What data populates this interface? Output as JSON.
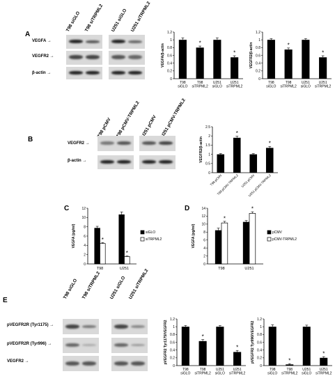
{
  "panels": {
    "A": {
      "letter": "A",
      "lanes": [
        "T98 siGLO",
        "T98 siTRPML2",
        "U251 siGLO",
        "U251 siTRPML2"
      ],
      "blots": [
        "VEGFA",
        "VEGFR2",
        "β-actin"
      ],
      "charts": [
        {
          "ylabel": "VEGFA/β-actin",
          "categories": [
            "T98 siGLO",
            "T98 siTRPML2",
            "U251 siGLO",
            "U251 siTRPML2"
          ],
          "values": [
            1.0,
            0.8,
            1.0,
            0.55
          ],
          "errors": [
            0.05,
            0.04,
            0.05,
            0.04
          ],
          "sig": [
            false,
            true,
            false,
            true
          ],
          "yticks": [
            "0",
            "0.2",
            "0.4",
            "0.6",
            "0.8",
            "1",
            "1.2"
          ],
          "ylim": [
            0,
            1.2
          ]
        },
        {
          "ylabel": "VEGFR2/β-actin",
          "categories": [
            "T98 siGLO",
            "T98 siTRPML2",
            "U251 siGLO",
            "U251 siTRPML2"
          ],
          "values": [
            1.0,
            0.75,
            1.0,
            0.55
          ],
          "errors": [
            0.03,
            0.04,
            0.03,
            0.04
          ],
          "sig": [
            false,
            true,
            false,
            true
          ],
          "yticks": [
            "0",
            "0.2",
            "0.4",
            "0.6",
            "0.8",
            "1",
            "1.2"
          ],
          "ylim": [
            0,
            1.2
          ]
        }
      ]
    },
    "B": {
      "letter": "B",
      "lanes": [
        "T98 pCMV",
        "T98 pCMV-TRPML2",
        "U251 pCMV",
        "U251 pCMV-TRPML2"
      ],
      "blots": [
        "VEGFR2",
        "β-actin"
      ],
      "charts": [
        {
          "ylabel": "VEGFR2/β-actin",
          "categories": [
            "T98 pCMV",
            "T98 pCMV-TRPML2",
            "U251 pCMV",
            "U251 pCMV-TRPML2"
          ],
          "values": [
            1.0,
            1.9,
            1.0,
            1.35
          ],
          "errors": [
            0.04,
            0.08,
            0.04,
            0.08
          ],
          "sig": [
            false,
            true,
            false,
            true
          ],
          "yticks": [
            "0",
            "0.5",
            "1",
            "1.5",
            "2",
            "2.5"
          ],
          "ylim": [
            0,
            2.5
          ],
          "rotated": true
        }
      ]
    },
    "C": {
      "letter": "C",
      "ylabel": "VEGFA (pg/ml)",
      "groups": [
        "T98",
        "U251"
      ],
      "series": [
        {
          "name": "siGLO",
          "values": [
            7.7,
            10.6
          ],
          "errors": [
            0.4,
            0.6
          ],
          "color": "#000000"
        },
        {
          "name": "siTRPML2",
          "values": [
            4.4,
            1.6
          ],
          "errors": [
            0.2,
            0.1
          ],
          "color": "#ffffff"
        }
      ],
      "sig": [
        false,
        true,
        false,
        true
      ],
      "yticks": [
        "0",
        "2",
        "4",
        "6",
        "8",
        "10",
        "12"
      ],
      "ylim": [
        0,
        12
      ]
    },
    "D": {
      "letter": "D",
      "ylabel": "VEGFA (pg/ml)",
      "groups": [
        "T98",
        "U251"
      ],
      "series": [
        {
          "name": "pCMV",
          "values": [
            8.4,
            10.5
          ],
          "errors": [
            0.6,
            0.4
          ],
          "color": "#000000"
        },
        {
          "name": "pCMV-TRPML2",
          "values": [
            10.3,
            12.7
          ],
          "errors": [
            0.4,
            0.4
          ],
          "color": "#ffffff"
        }
      ],
      "sig": [
        false,
        true,
        false,
        true
      ],
      "yticks": [
        "0",
        "2",
        "4",
        "6",
        "8",
        "10",
        "12",
        "14"
      ],
      "ylim": [
        0,
        14
      ]
    },
    "E": {
      "letter": "E",
      "lanes": [
        "T98 siGLO",
        "T98 siTRPML2",
        "U251 siGLO",
        "U251 siTRPML2"
      ],
      "blots": [
        "pVEGFR2R (Tyr1175)",
        "pVEGFR2R (Tyr996)",
        "VEGFR2"
      ],
      "charts": [
        {
          "ylabel": "pVEGFR2 Tyr1175/VEGFR2",
          "categories": [
            "T98 siGLO",
            "T98 siTRPML2",
            "U251 siGLO",
            "U251 siTRPML2"
          ],
          "values": [
            1.0,
            0.63,
            1.0,
            0.35
          ],
          "errors": [
            0.03,
            0.04,
            0.03,
            0.04
          ],
          "sig": [
            false,
            true,
            false,
            true
          ],
          "yticks": [
            "0",
            "0.2",
            "0.4",
            "0.6",
            "0.8",
            "1",
            "1.2"
          ],
          "ylim": [
            0,
            1.2
          ]
        },
        {
          "ylabel": "pVEGFR2 Tyr996/VEGFR2",
          "categories": [
            "T98 siGLO",
            "T98 siTRPML2",
            "U251 siGLO",
            "U251 siTRPML2"
          ],
          "values": [
            1.0,
            0.03,
            1.0,
            0.2
          ],
          "errors": [
            0.05,
            0.02,
            0.04,
            0.03
          ],
          "sig": [
            false,
            true,
            false,
            true
          ],
          "yticks": [
            "0",
            "0.2",
            "0.4",
            "0.6",
            "0.8",
            "1",
            "1.2"
          ],
          "ylim": [
            0,
            1.2
          ]
        }
      ]
    }
  },
  "chart_data": [
    {
      "type": "bar",
      "panel": "A",
      "ylabel": "VEGFA/β-actin",
      "categories": [
        "T98 siGLO",
        "T98 siTRPML2",
        "U251 siGLO",
        "U251 siTRPML2"
      ],
      "values": [
        1.0,
        0.8,
        1.0,
        0.55
      ],
      "ylim": [
        0,
        1.2
      ]
    },
    {
      "type": "bar",
      "panel": "A",
      "ylabel": "VEGFR2/β-actin",
      "categories": [
        "T98 siGLO",
        "T98 siTRPML2",
        "U251 siGLO",
        "U251 siTRPML2"
      ],
      "values": [
        1.0,
        0.75,
        1.0,
        0.55
      ],
      "ylim": [
        0,
        1.2
      ]
    },
    {
      "type": "bar",
      "panel": "B",
      "ylabel": "VEGFR2/β-actin",
      "categories": [
        "T98 pCMV",
        "T98 pCMV-TRPML2",
        "U251 pCMV",
        "U251 pCMV-TRPML2"
      ],
      "values": [
        1.0,
        1.9,
        1.0,
        1.35
      ],
      "ylim": [
        0,
        2.5
      ]
    },
    {
      "type": "bar",
      "panel": "C",
      "ylabel": "VEGFA (pg/ml)",
      "categories": [
        "T98",
        "U251"
      ],
      "series": [
        {
          "name": "siGLO",
          "values": [
            7.7,
            10.6
          ]
        },
        {
          "name": "siTRPML2",
          "values": [
            4.4,
            1.6
          ]
        }
      ],
      "ylim": [
        0,
        12
      ]
    },
    {
      "type": "bar",
      "panel": "D",
      "ylabel": "VEGFA (pg/ml)",
      "categories": [
        "T98",
        "U251"
      ],
      "series": [
        {
          "name": "pCMV",
          "values": [
            8.4,
            10.5
          ]
        },
        {
          "name": "pCMV-TRPML2",
          "values": [
            10.3,
            12.7
          ]
        }
      ],
      "ylim": [
        0,
        14
      ]
    },
    {
      "type": "bar",
      "panel": "E",
      "ylabel": "pVEGFR2 Tyr1175/VEGFR2",
      "categories": [
        "T98 siGLO",
        "T98 siTRPML2",
        "U251 siGLO",
        "U251 siTRPML2"
      ],
      "values": [
        1.0,
        0.63,
        1.0,
        0.35
      ],
      "ylim": [
        0,
        1.2
      ]
    },
    {
      "type": "bar",
      "panel": "E",
      "ylabel": "pVEGFR2 Tyr996/VEGFR2",
      "categories": [
        "T98 siGLO",
        "T98 siTRPML2",
        "U251 siGLO",
        "U251 siTRPML2"
      ],
      "values": [
        1.0,
        0.03,
        1.0,
        0.2
      ],
      "ylim": [
        0,
        1.2
      ]
    }
  ]
}
